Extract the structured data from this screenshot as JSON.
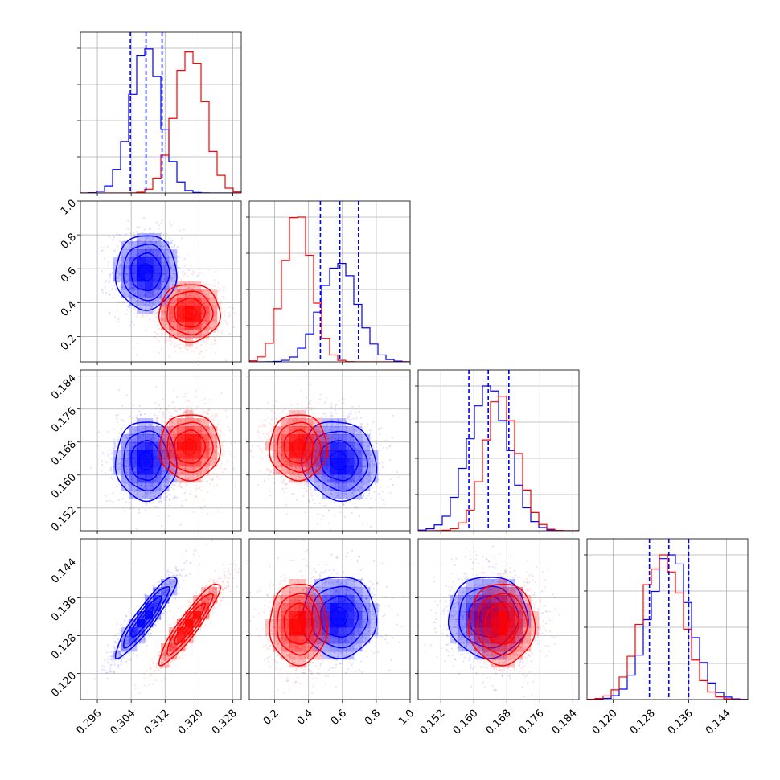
{
  "chart_data": {
    "type": "corner",
    "title": "",
    "parameters": [
      {
        "range": [
          0.292,
          0.33
        ],
        "ticks": [
          0.296,
          0.304,
          0.312,
          0.32,
          0.328
        ],
        "tick_labels": [
          "0.296",
          "0.304",
          "0.312",
          "0.320",
          "0.328"
        ]
      },
      {
        "range": [
          0.05,
          1.0
        ],
        "ticks": [
          0.2,
          0.4,
          0.6,
          0.8,
          1.0
        ],
        "tick_labels": [
          "0.2",
          "0.4",
          "0.6",
          "0.8",
          "1.0"
        ]
      },
      {
        "range": [
          0.1465,
          0.1855
        ],
        "ticks": [
          0.152,
          0.16,
          0.168,
          0.176,
          0.184
        ],
        "tick_labels": [
          "0.152",
          "0.160",
          "0.168",
          "0.176",
          "0.184"
        ]
      },
      {
        "range": [
          0.1145,
          0.1485
        ],
        "ticks": [
          0.12,
          0.128,
          0.136,
          0.144
        ],
        "tick_labels": [
          "0.120",
          "0.128",
          "0.136",
          "0.144"
        ]
      }
    ],
    "grid": true,
    "legend": "none",
    "series": [
      {
        "color": "#0000ff",
        "means": [
          0.3075,
          0.58,
          0.1635,
          0.132
        ],
        "sigmas": [
          0.0036,
          0.11,
          0.0048,
          0.0043
        ],
        "corr": {
          "0-3": 0.92,
          "0-2": 0.0,
          "1-2": -0.1
        },
        "quantiles": [
          [
            0.3038,
            0.3075,
            0.3113
          ],
          [
            0.47,
            0.585,
            0.695
          ],
          [
            0.1588,
            0.1635,
            0.1685
          ],
          [
            0.1277,
            0.1318,
            0.136
          ]
        ],
        "hist_peaks": [
          1.0,
          0.68,
          1.0,
          1.0
        ]
      },
      {
        "color": "#ff0000",
        "means": [
          0.3178,
          0.34,
          0.1668,
          0.1305
        ],
        "sigmas": [
          0.0036,
          0.085,
          0.004,
          0.0043
        ],
        "corr": {
          "0-3": 0.92,
          "0-2": 0.0,
          "1-2": 0.0
        },
        "hist_peaks": [
          1.0,
          1.0,
          0.93,
          1.0
        ]
      }
    ]
  }
}
